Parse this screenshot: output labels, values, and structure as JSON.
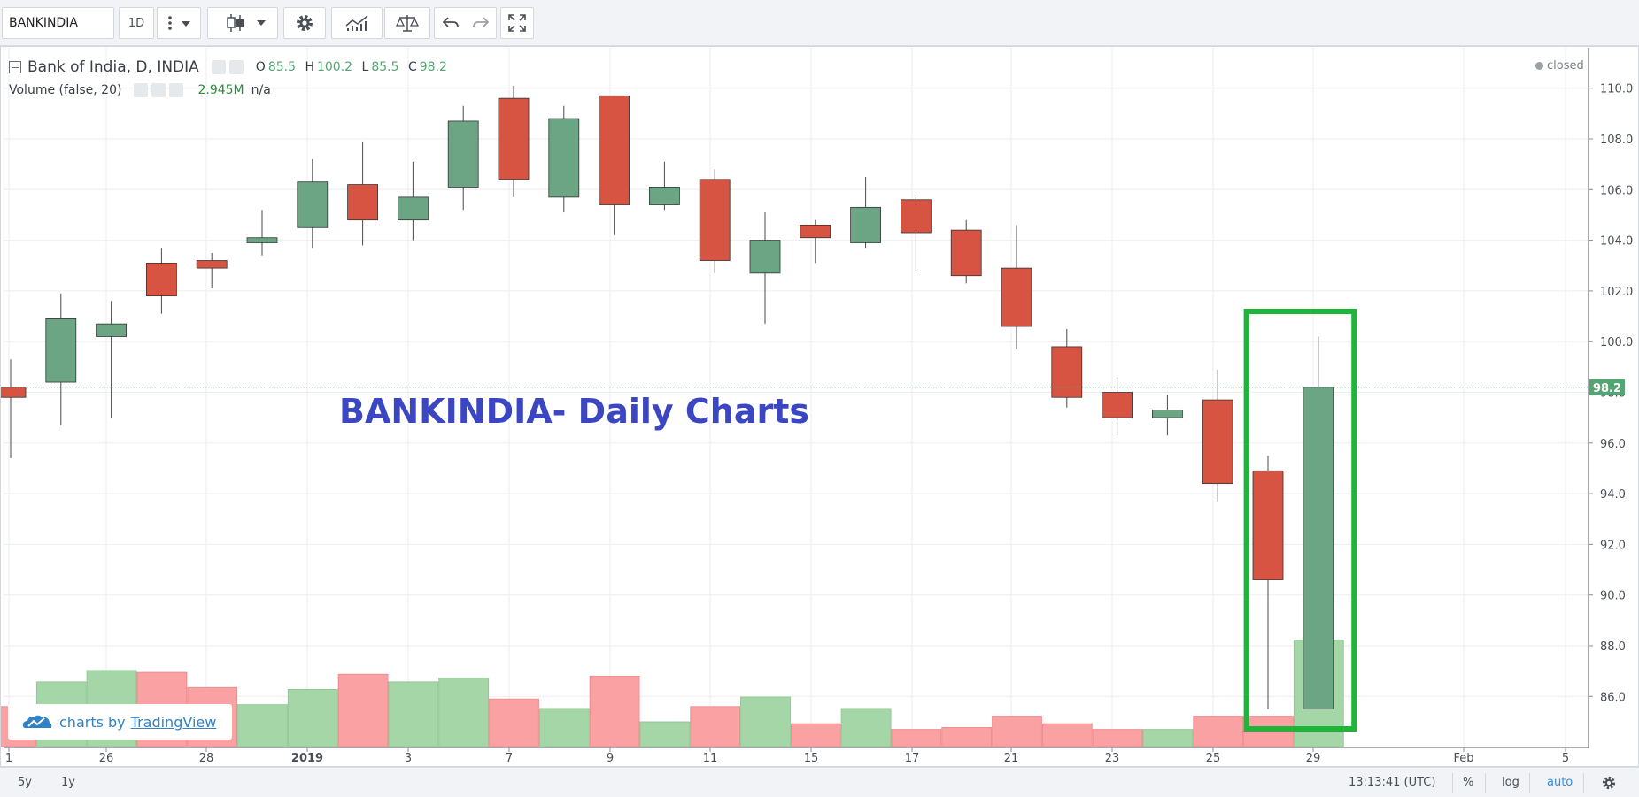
{
  "toolbar": {
    "symbol": "BANKINDIA",
    "interval": "1D",
    "icons": [
      "more-icon",
      "chevron-down-icon",
      "candles-icon",
      "chevron-down-icon",
      "gear-icon",
      "indicators-icon",
      "compare-icon",
      "undo-icon",
      "redo-icon",
      "fullscreen-icon"
    ]
  },
  "legend": {
    "title": "Bank of India, D, INDIA",
    "o_label": "O",
    "o": "85.5",
    "h_label": "H",
    "h": "100.2",
    "l_label": "L",
    "l": "85.5",
    "c_label": "C",
    "c": "98.2",
    "volume_label": "Volume (false, 20)",
    "volume_value": "2.945M",
    "volume_na": "n/a"
  },
  "status": "closed",
  "annotation": "BANKINDIA- Daily Charts",
  "watermark": {
    "text": "charts by",
    "brand": "TradingView"
  },
  "bottom": {
    "range_5y": "5y",
    "range_1y": "1y",
    "time": "13:13:41 (UTC)",
    "percent": "%",
    "log": "log",
    "auto": "auto"
  },
  "colors": {
    "up": "#6ba583",
    "down": "#d75442",
    "vol_up": "#a5d6a7",
    "vol_down": "#faa1a4",
    "highlight": "#1db53a",
    "price_line": "#53a673"
  },
  "chart_data": {
    "type": "candlestick",
    "symbol": "BANKINDIA",
    "last_price": "98.2",
    "y_ticks": [
      "86.0",
      "88.0",
      "90.0",
      "92.0",
      "94.0",
      "96.0",
      "98.0",
      "100.0",
      "102.0",
      "104.0",
      "106.0",
      "108.0",
      "110.0"
    ],
    "x_ticks": [
      "1",
      "26",
      "28",
      "2019",
      "3",
      "7",
      "9",
      "11",
      "15",
      "17",
      "21",
      "23",
      "25",
      "29",
      "Feb",
      "5"
    ],
    "ylim": [
      84.1,
      111.5
    ],
    "candles": [
      {
        "o": 98.2,
        "h": 99.3,
        "l": 95.4,
        "c": 97.8,
        "vol": 2.1
      },
      {
        "o": 98.4,
        "h": 101.9,
        "l": 96.7,
        "c": 100.9,
        "vol": 3.4
      },
      {
        "o": 100.2,
        "h": 101.6,
        "l": 97.0,
        "c": 100.7,
        "vol": 4.0
      },
      {
        "o": 103.1,
        "h": 103.7,
        "l": 101.1,
        "c": 101.8,
        "vol": 3.9
      },
      {
        "o": 103.2,
        "h": 103.5,
        "l": 102.1,
        "c": 102.9,
        "vol": 3.1
      },
      {
        "o": 103.9,
        "h": 105.2,
        "l": 103.4,
        "c": 104.1,
        "vol": 2.2
      },
      {
        "o": 104.5,
        "h": 107.2,
        "l": 103.7,
        "c": 106.3,
        "vol": 3.0
      },
      {
        "o": 106.2,
        "h": 107.9,
        "l": 103.8,
        "c": 104.8,
        "vol": 3.8
      },
      {
        "o": 104.8,
        "h": 107.1,
        "l": 104.0,
        "c": 105.7,
        "vol": 3.4
      },
      {
        "o": 106.1,
        "h": 109.3,
        "l": 105.2,
        "c": 108.7,
        "vol": 3.6
      },
      {
        "o": 109.6,
        "h": 110.1,
        "l": 105.7,
        "c": 106.4,
        "vol": 2.5
      },
      {
        "o": 105.7,
        "h": 109.3,
        "l": 105.1,
        "c": 108.8,
        "vol": 2.0
      },
      {
        "o": 109.7,
        "h": 109.7,
        "l": 104.2,
        "c": 105.4,
        "vol": 3.7
      },
      {
        "o": 105.4,
        "h": 107.1,
        "l": 105.2,
        "c": 106.1,
        "vol": 1.3
      },
      {
        "o": 106.4,
        "h": 106.8,
        "l": 102.7,
        "c": 103.2,
        "vol": 2.1
      },
      {
        "o": 102.7,
        "h": 105.1,
        "l": 100.7,
        "c": 104.0,
        "vol": 2.6
      },
      {
        "o": 104.6,
        "h": 104.8,
        "l": 103.1,
        "c": 104.1,
        "vol": 1.2
      },
      {
        "o": 103.9,
        "h": 106.5,
        "l": 103.7,
        "c": 105.3,
        "vol": 2.0
      },
      {
        "o": 105.6,
        "h": 105.8,
        "l": 102.8,
        "c": 104.3,
        "vol": 0.9
      },
      {
        "o": 104.4,
        "h": 104.8,
        "l": 102.3,
        "c": 102.6,
        "vol": 1.0
      },
      {
        "o": 102.9,
        "h": 104.6,
        "l": 99.7,
        "c": 100.6,
        "vol": 1.6
      },
      {
        "o": 99.8,
        "h": 100.5,
        "l": 97.4,
        "c": 97.8,
        "vol": 1.2
      },
      {
        "o": 98.0,
        "h": 98.6,
        "l": 96.3,
        "c": 97.0,
        "vol": 0.9
      },
      {
        "o": 97.0,
        "h": 97.9,
        "l": 96.3,
        "c": 97.3,
        "vol": 0.9
      },
      {
        "o": 97.7,
        "h": 98.9,
        "l": 93.7,
        "c": 94.4,
        "vol": 1.6
      },
      {
        "o": 94.9,
        "h": 95.5,
        "l": 85.5,
        "c": 90.6,
        "vol": 1.6
      },
      {
        "o": 85.5,
        "h": 100.2,
        "l": 85.5,
        "c": 98.2,
        "vol": 5.6
      }
    ],
    "highlight_box": "last two candles"
  }
}
